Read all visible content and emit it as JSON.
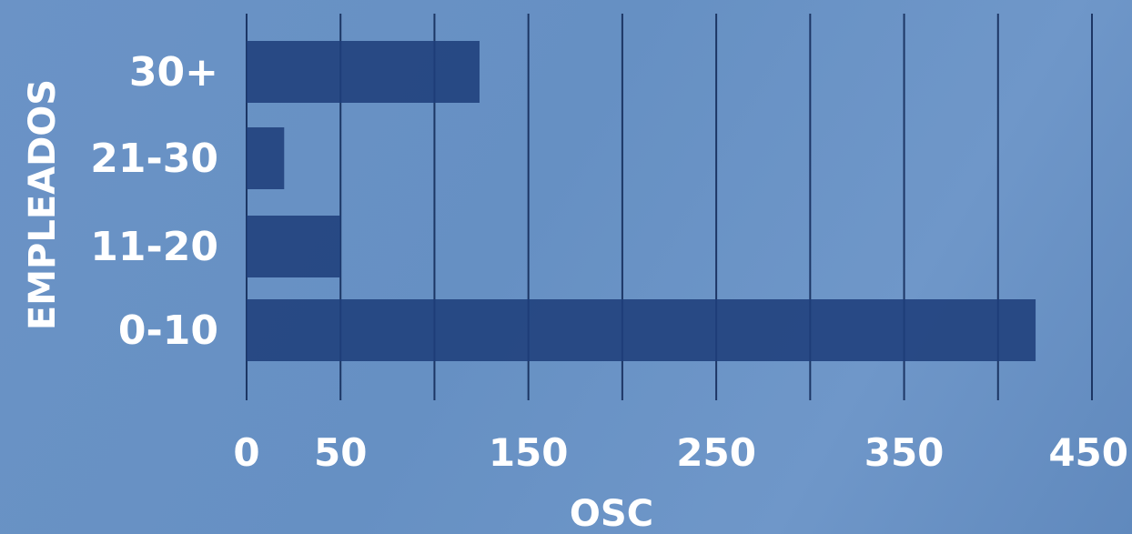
{
  "chart_data": {
    "type": "bar",
    "orientation": "horizontal",
    "categories": [
      "30+",
      "21-30",
      "11-20",
      "0-10"
    ],
    "values": [
      124,
      20,
      50,
      420
    ],
    "xlabel": "OSC",
    "ylabel": "EMPLEADOS",
    "xlim": [
      0,
      450
    ],
    "x_ticks": [
      0,
      50,
      100,
      150,
      200,
      250,
      300,
      350,
      400,
      450
    ],
    "x_tick_labels": [
      "0",
      "50",
      "",
      "150",
      "",
      "250",
      "",
      "350",
      "",
      "450"
    ],
    "grid": "vertical",
    "bar_color": "#1f3f7b",
    "gridline_color": "#0f2654",
    "background_color": "#6a8fc2",
    "text_color": "#ffffff"
  }
}
